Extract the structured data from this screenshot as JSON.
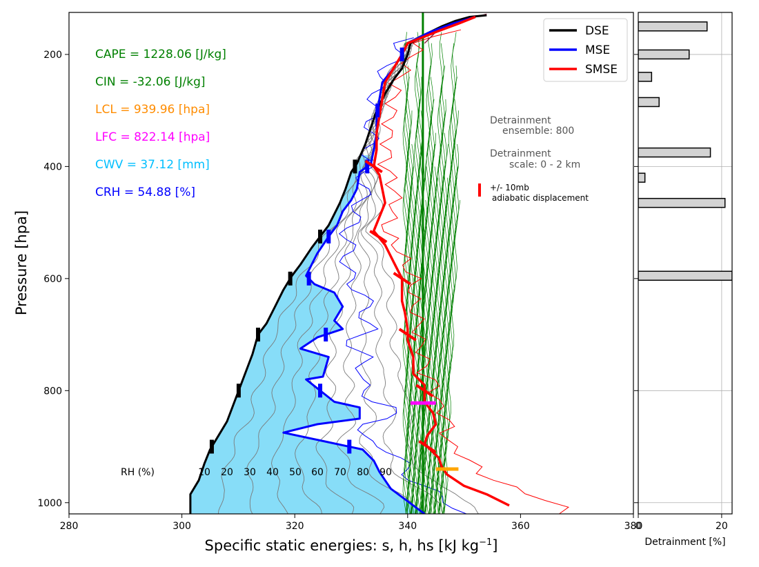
{
  "chart_data": [
    {
      "type": "line",
      "xlabel": "Specific static energies: s, h, hs [kJ kg",
      "xlabel_sup": "−1",
      "xlabel_end": "]",
      "ylabel": "Pressure [hpa]",
      "xlim": [
        280,
        380
      ],
      "ylim": [
        1020,
        125
      ],
      "y_inverted": true,
      "x_ticks": [
        280,
        300,
        320,
        340,
        360,
        380
      ],
      "y_ticks": [
        200,
        400,
        600,
        800,
        1000
      ],
      "grid": false,
      "legend_position": "top-right",
      "stats": [
        {
          "text": "CAPE = 1228.06 [J/kg]",
          "color": "#008000"
        },
        {
          "text": "CIN = -32.06 [J/kg]",
          "color": "#008000"
        },
        {
          "text": "LCL = 939.96 [hpa]",
          "color": "#ff8c00"
        },
        {
          "text": "LFC = 822.14 [hpa]",
          "color": "#ff00ff"
        },
        {
          "text": "CWV = 37.12 [mm]",
          "color": "#00bfff"
        },
        {
          "text": "CRH = 54.88 [%]",
          "color": "#0000ff"
        }
      ],
      "annotations": {
        "detrainment_ensemble": [
          "Detrainment",
          "ensemble: 800"
        ],
        "detrainment_scale": [
          "Detrainment",
          "scale: 0 - 2 km"
        ],
        "displacement": [
          "+/- 10mb",
          "adiabatic displacement"
        ],
        "rh_label": "RH (%)",
        "rh_values": [
          "10",
          "20",
          "30",
          "40",
          "50",
          "60",
          "70",
          "80",
          "90"
        ]
      },
      "series": [
        {
          "name": "DSE",
          "color": "#000000",
          "points": [
            [
              301.5,
              1020
            ],
            [
              301.5,
              985
            ],
            [
              303,
              960
            ],
            [
              304,
              930
            ],
            [
              305,
              905
            ],
            [
              306.5,
              880
            ],
            [
              308,
              855
            ],
            [
              309.5,
              815
            ],
            [
              311,
              775
            ],
            [
              312.5,
              735
            ],
            [
              313.5,
              700
            ],
            [
              315,
              680
            ],
            [
              316.5,
              650
            ],
            [
              318,
              620
            ],
            [
              319.5,
              595
            ],
            [
              321,
              575
            ],
            [
              323,
              545
            ],
            [
              324.5,
              525
            ],
            [
              326,
              505
            ],
            [
              327,
              485
            ],
            [
              328,
              465
            ],
            [
              329,
              440
            ],
            [
              330,
              410
            ],
            [
              331,
              395
            ],
            [
              332.5,
              360
            ],
            [
              333.5,
              330
            ],
            [
              334.5,
              300
            ],
            [
              336,
              270
            ],
            [
              337.5,
              245
            ],
            [
              339,
              225
            ],
            [
              340,
              200
            ],
            [
              340.5,
              180
            ],
            [
              343,
              165
            ],
            [
              346,
              150
            ],
            [
              348.5,
              140
            ],
            [
              351,
              133
            ],
            [
              354,
              130
            ]
          ]
        },
        {
          "name": "MSE",
          "color": "#0000ff",
          "points": [
            [
              343,
              1020
            ],
            [
              341,
              1005
            ],
            [
              339,
              990
            ],
            [
              337,
              975
            ],
            [
              336,
              960
            ],
            [
              335,
              945
            ],
            [
              334,
              925
            ],
            [
              332,
              905
            ],
            [
              325,
              890
            ],
            [
              318,
              875
            ],
            [
              324,
              860
            ],
            [
              331.5,
              850
            ],
            [
              331.5,
              830
            ],
            [
              327,
              820
            ],
            [
              322,
              780
            ],
            [
              325,
              775
            ],
            [
              326,
              740
            ],
            [
              321,
              725
            ],
            [
              324,
              705
            ],
            [
              328.5,
              690
            ],
            [
              327,
              675
            ],
            [
              328.5,
              650
            ],
            [
              327,
              625
            ],
            [
              323.5,
              610
            ],
            [
              322,
              595
            ],
            [
              323,
              575
            ],
            [
              324,
              555
            ],
            [
              326,
              525
            ],
            [
              327.5,
              505
            ],
            [
              328.5,
              480
            ],
            [
              330,
              460
            ],
            [
              331,
              440
            ],
            [
              331.5,
              410
            ],
            [
              333.5,
              395
            ],
            [
              334,
              370
            ],
            [
              334.5,
              340
            ],
            [
              334.5,
              310
            ],
            [
              335,
              280
            ],
            [
              335.5,
              250
            ],
            [
              337.5,
              225
            ],
            [
              339,
              200
            ],
            [
              340,
              180
            ],
            [
              344,
              160
            ],
            [
              348,
              145
            ],
            [
              352,
              133
            ]
          ]
        },
        {
          "name": "SMSE",
          "color": "#ff0000",
          "points": [
            [
              358,
              1005
            ],
            [
              354,
              985
            ],
            [
              350,
              970
            ],
            [
              347,
              950
            ],
            [
              346,
              935
            ],
            [
              345.5,
              920
            ],
            [
              343,
              895
            ],
            [
              343.5,
              880
            ],
            [
              345,
              860
            ],
            [
              344.5,
              840
            ],
            [
              343,
              820
            ],
            [
              343,
              790
            ],
            [
              341,
              770
            ],
            [
              341,
              740
            ],
            [
              340,
              710
            ],
            [
              340,
              690
            ],
            [
              339.5,
              660
            ],
            [
              339,
              640
            ],
            [
              339,
              600
            ],
            [
              337.5,
              570
            ],
            [
              336,
              540
            ],
            [
              334,
              515
            ],
            [
              335,
              490
            ],
            [
              336,
              465
            ],
            [
              335.5,
              440
            ],
            [
              335,
              415
            ],
            [
              334,
              400
            ],
            [
              334.5,
              370
            ],
            [
              334.5,
              340
            ],
            [
              335,
              310
            ],
            [
              335.5,
              280
            ],
            [
              336,
              250
            ],
            [
              337.5,
              225
            ],
            [
              339,
              200
            ],
            [
              340,
              180
            ],
            [
              345,
              160
            ],
            [
              349,
              145
            ],
            [
              352,
              133
            ]
          ]
        }
      ]
    },
    {
      "type": "bar",
      "orientation": "horizontal",
      "xlabel": "Detrainment [%]",
      "xlim": [
        0,
        22.5
      ],
      "x_ticks": [
        0,
        20
      ],
      "y_ticks": [
        200,
        400,
        600,
        800,
        1000
      ],
      "grid": true,
      "categories": [
        150,
        200,
        240,
        285,
        375,
        420,
        465,
        595
      ],
      "values": [
        16.5,
        12.2,
        3.2,
        5.0,
        17.3,
        1.6,
        20.8,
        22.5
      ]
    }
  ],
  "legend": [
    {
      "label": "DSE",
      "color": "#000000"
    },
    {
      "label": "MSE",
      "color": "#0000ff"
    },
    {
      "label": "SMSE",
      "color": "#ff0000"
    }
  ]
}
